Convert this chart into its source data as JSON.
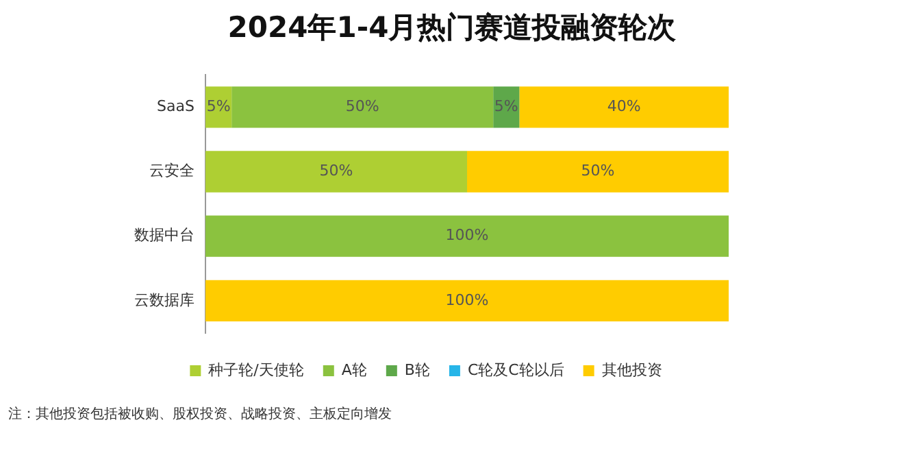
{
  "chart_data": {
    "type": "bar",
    "title": "2024年1-4月热门赛道投融资轮次",
    "orientation": "horizontal",
    "stacked": true,
    "categories": [
      "SaaS",
      "云安全",
      "数据中台",
      "云数据库"
    ],
    "series": [
      {
        "name": "种子轮/天使轮",
        "color": "#aecf33",
        "values": [
          5,
          50,
          0,
          0
        ],
        "value_labels": [
          "5%",
          "50%",
          null,
          null
        ]
      },
      {
        "name": "A轮",
        "color": "#8bc23f",
        "values": [
          50,
          0,
          100,
          0
        ],
        "value_labels": [
          "50%",
          null,
          "100%",
          null
        ]
      },
      {
        "name": "B轮",
        "color": "#5ea84a",
        "values": [
          5,
          0,
          0,
          0
        ],
        "value_labels": [
          "5%",
          null,
          null,
          null
        ]
      },
      {
        "name": "C轮及C轮以后",
        "color": "#27b5e8",
        "values": [
          0,
          0,
          0,
          0
        ],
        "value_labels": [
          null,
          null,
          null,
          null
        ]
      },
      {
        "name": "其他投资",
        "color": "#ffcc00",
        "values": [
          40,
          50,
          0,
          100
        ],
        "value_labels": [
          "40%",
          "50%",
          null,
          "100%"
        ]
      }
    ],
    "xlim": [
      0,
      100
    ],
    "tick_labels": "y",
    "grid": false,
    "legend": "bottom",
    "annotations": [
      "注：其他投资包括被收购、股权投资、战略投资、主板定向增发"
    ]
  }
}
